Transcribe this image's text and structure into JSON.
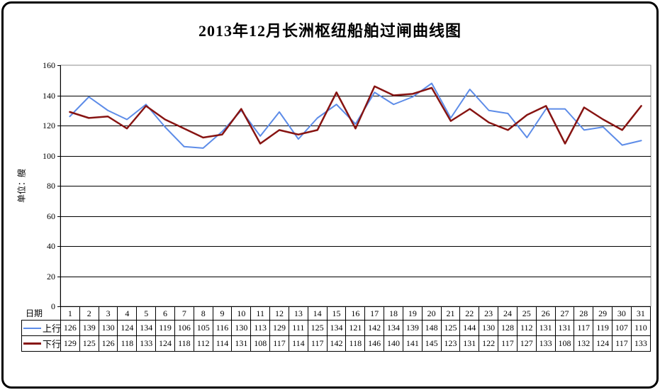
{
  "title": "2013年12月长洲枢纽船舶过闸曲线图",
  "y_axis_title": "单位：艘",
  "x_axis_title": "日期",
  "chart_data": {
    "type": "line",
    "title": "2013年12月长洲枢纽船舶过闸曲线图",
    "xlabel": "日期",
    "ylabel": "单位：艘",
    "x": [
      1,
      2,
      3,
      4,
      5,
      6,
      7,
      8,
      9,
      10,
      11,
      12,
      13,
      14,
      15,
      16,
      17,
      18,
      19,
      20,
      21,
      22,
      23,
      24,
      25,
      26,
      27,
      28,
      29,
      30,
      31
    ],
    "ylim": [
      0,
      160
    ],
    "yticks": [
      0,
      20,
      40,
      60,
      80,
      100,
      120,
      140,
      160
    ],
    "grid": "horizontal",
    "legend_position": "table-left",
    "series": [
      {
        "name": "上行",
        "color": "#5d8ce8",
        "values": [
          126,
          139,
          130,
          124,
          134,
          119,
          106,
          105,
          116,
          130,
          113,
          129,
          111,
          125,
          134,
          121,
          142,
          134,
          139,
          148,
          125,
          144,
          130,
          128,
          112,
          131,
          131,
          117,
          119,
          107,
          110
        ]
      },
      {
        "name": "下行",
        "color": "#871412",
        "values": [
          129,
          125,
          126,
          118,
          133,
          124,
          118,
          112,
          114,
          131,
          108,
          117,
          114,
          117,
          142,
          118,
          146,
          140,
          141,
          145,
          123,
          131,
          122,
          117,
          127,
          133,
          108,
          132,
          124,
          117,
          133
        ]
      }
    ]
  }
}
